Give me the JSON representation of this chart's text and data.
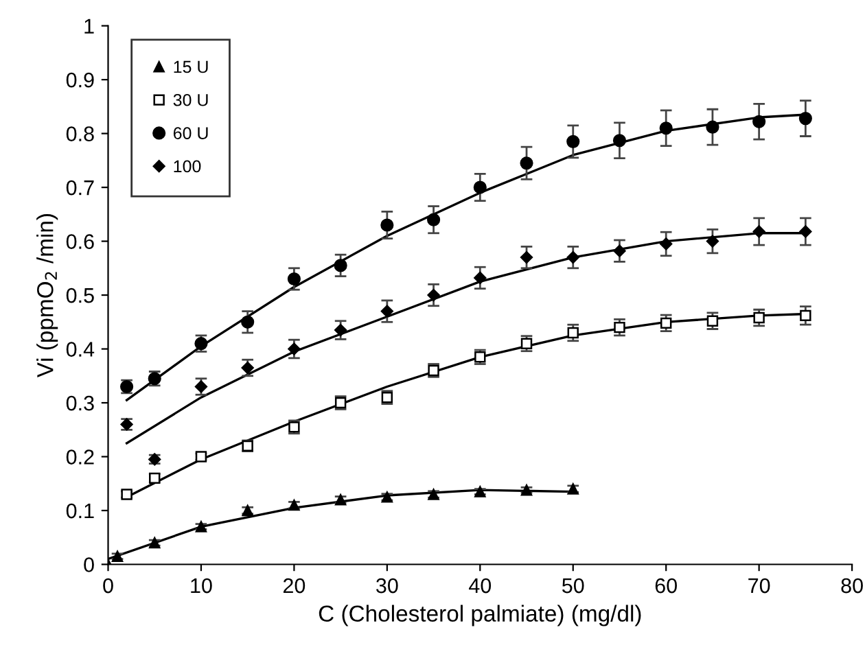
{
  "chart_data": {
    "type": "scatter",
    "xlabel": "C (Cholesterol palmiate) (mg/dl)",
    "ylabel": "Vi (ppmO$_{2}$ /min)",
    "xlim": [
      0,
      80
    ],
    "xticks": [
      0,
      10,
      20,
      30,
      40,
      50,
      60,
      70,
      80
    ],
    "ylim": [
      0,
      1
    ],
    "yticks": [
      0,
      0.1,
      0.2,
      0.3,
      0.4,
      0.5,
      0.6,
      0.7,
      0.8,
      0.9,
      1
    ],
    "grid": false,
    "legend": "top left",
    "series": [
      {
        "name": "15 U",
        "color": "#000000",
        "marker": "triangle",
        "x": [
          0,
          1,
          5,
          10,
          15,
          20,
          25,
          30,
          35,
          40,
          45,
          50
        ],
        "values": [
          0,
          0.015,
          0.04,
          0.07,
          0.1,
          0.11,
          0.12,
          0.125,
          0.13,
          0.135,
          0.138,
          0.14
        ],
        "errors": [
          null,
          0.005,
          0.005,
          0.005,
          0.006,
          0.006,
          0.006,
          0.006,
          0.006,
          0.005,
          0.005,
          0.006
        ]
      },
      {
        "name": "30 U",
        "color": "#000000",
        "marker": "square",
        "x": [
          2,
          5,
          10,
          15,
          20,
          25,
          30,
          35,
          40,
          45,
          50,
          55,
          60,
          65,
          70,
          75
        ],
        "values": [
          0.13,
          0.16,
          0.2,
          0.22,
          0.255,
          0.3,
          0.31,
          0.36,
          0.385,
          0.41,
          0.43,
          0.44,
          0.448,
          0.452,
          0.458,
          0.462
        ],
        "errors": [
          0.006,
          0.008,
          0.006,
          0.01,
          0.012,
          0.012,
          0.012,
          0.012,
          0.013,
          0.014,
          0.015,
          0.015,
          0.015,
          0.015,
          0.015,
          0.017
        ]
      },
      {
        "name": "60 U",
        "color": "#000000",
        "marker": "circle",
        "x": [
          2,
          5,
          10,
          15,
          20,
          25,
          30,
          35,
          40,
          45,
          50,
          55,
          60,
          65,
          70,
          75
        ],
        "values": [
          0.33,
          0.345,
          0.41,
          0.45,
          0.53,
          0.555,
          0.63,
          0.64,
          0.7,
          0.745,
          0.785,
          0.787,
          0.81,
          0.812,
          0.822,
          0.828
        ],
        "errors": [
          0.012,
          0.013,
          0.015,
          0.02,
          0.02,
          0.02,
          0.025,
          0.025,
          0.025,
          0.03,
          0.03,
          0.033,
          0.033,
          0.033,
          0.033,
          0.033
        ]
      },
      {
        "name": "100",
        "color": "#000000",
        "marker": "diamond",
        "x": [
          2,
          5,
          10,
          15,
          20,
          25,
          30,
          35,
          40,
          45,
          50,
          55,
          60,
          65,
          70,
          75
        ],
        "values": [
          0.26,
          0.195,
          0.33,
          0.365,
          0.4,
          0.435,
          0.47,
          0.5,
          0.532,
          0.57,
          0.57,
          0.582,
          0.595,
          0.6,
          0.618,
          0.618
        ],
        "errors": [
          0.01,
          0.008,
          0.015,
          0.015,
          0.017,
          0.017,
          0.02,
          0.02,
          0.02,
          0.02,
          0.02,
          0.02,
          0.022,
          0.022,
          0.025,
          0.025
        ]
      },
      {
        "type": "line",
        "color": "#000000",
        "marker": "none",
        "x": [
          0,
          10,
          20,
          30,
          40,
          50
        ],
        "values": [
          0.01,
          0.07,
          0.105,
          0.128,
          0.138,
          0.135
        ]
      },
      {
        "type": "line",
        "color": "#000000",
        "marker": "none",
        "x": [
          2,
          10,
          20,
          30,
          40,
          50,
          60,
          70,
          75
        ],
        "values": [
          0.125,
          0.195,
          0.265,
          0.33,
          0.385,
          0.425,
          0.45,
          0.462,
          0.465
        ]
      },
      {
        "type": "line",
        "color": "#000000",
        "marker": "none",
        "x": [
          2,
          10,
          20,
          30,
          40,
          50,
          60,
          70,
          75
        ],
        "values": [
          0.305,
          0.405,
          0.515,
          0.61,
          0.69,
          0.76,
          0.805,
          0.83,
          0.835
        ]
      },
      {
        "type": "line",
        "color": "#000000",
        "marker": "none",
        "x": [
          2,
          10,
          20,
          30,
          40,
          50,
          60,
          70,
          75
        ],
        "values": [
          0.225,
          0.31,
          0.395,
          0.46,
          0.525,
          0.57,
          0.6,
          0.615,
          0.615
        ]
      }
    ]
  }
}
